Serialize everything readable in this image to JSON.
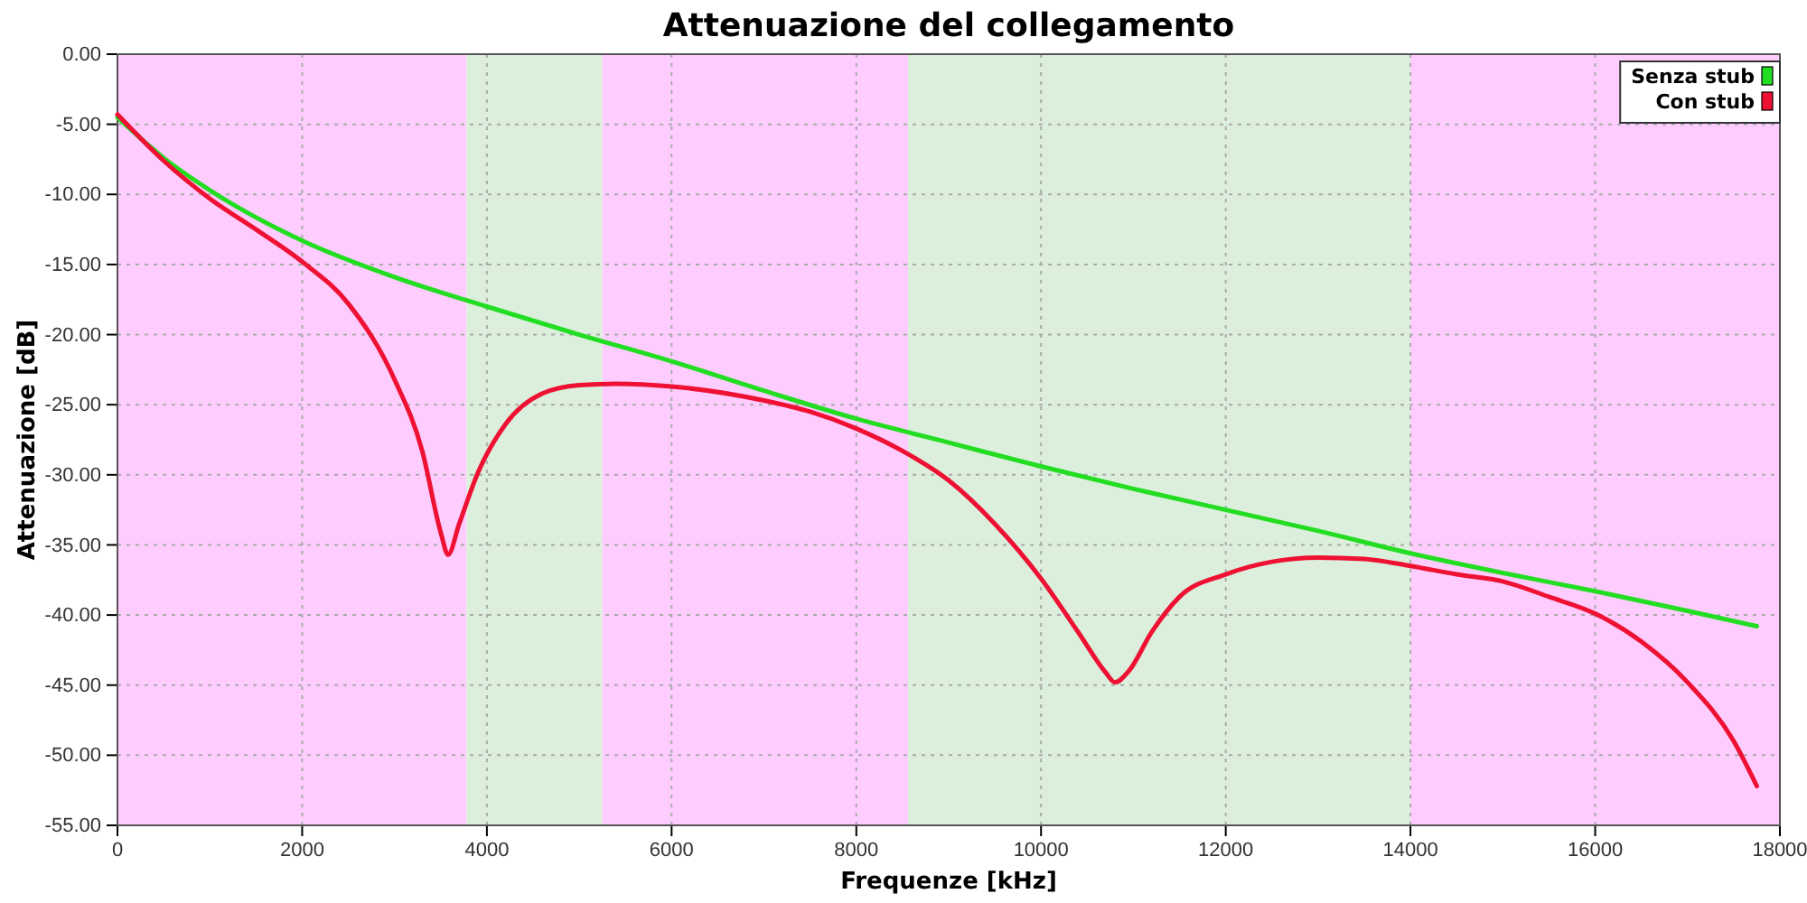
{
  "chart_data": {
    "type": "line",
    "title": "Attenuazione del collegamento",
    "xlabel": "Frequenze [kHz]",
    "ylabel": "Attenuazione [dB]",
    "xlim": [
      0,
      18000
    ],
    "xticks": [
      0,
      2000,
      4000,
      6000,
      8000,
      10000,
      12000,
      14000,
      16000,
      18000
    ],
    "ylim": [
      -55,
      0
    ],
    "yticks": [
      {
        "value": 0,
        "label": "0.00"
      },
      {
        "value": -5,
        "label": "-5.00"
      },
      {
        "value": -10,
        "label": "-10.00"
      },
      {
        "value": -15,
        "label": "-15.00"
      },
      {
        "value": -20,
        "label": "-20.00"
      },
      {
        "value": -25,
        "label": "-25.00"
      },
      {
        "value": -30,
        "label": "-30.00"
      },
      {
        "value": -35,
        "label": "-35.00"
      },
      {
        "value": -40,
        "label": "-40.00"
      },
      {
        "value": -45,
        "label": "-45.00"
      },
      {
        "value": -50,
        "label": "-50.00"
      },
      {
        "value": -55,
        "label": "-55.00"
      }
    ],
    "grid": true,
    "legend": "top right",
    "marker": "none",
    "line_style": "solid",
    "bands": [
      {
        "axis": "x",
        "from": 0,
        "to": 3780,
        "color": "#ffccff"
      },
      {
        "axis": "x",
        "from": 3780,
        "to": 5250,
        "color": "#dcefdc"
      },
      {
        "axis": "x",
        "from": 5250,
        "to": 8560,
        "color": "#ffccff"
      },
      {
        "axis": "x",
        "from": 8560,
        "to": 14000,
        "color": "#dcefdc"
      },
      {
        "axis": "x",
        "from": 14000,
        "to": 18000,
        "color": "#ffccff"
      }
    ],
    "series": [
      {
        "name": "Senza stub",
        "color": "#22dd22",
        "x": [
          0,
          500,
          1000,
          2000,
          3000,
          4000,
          5000,
          6000,
          7000,
          8000,
          9000,
          10000,
          11000,
          12000,
          13000,
          14000,
          15000,
          16000,
          17000,
          17750
        ],
        "values": [
          -4.5,
          -7.4,
          -9.7,
          -13.3,
          -15.9,
          -18,
          -20,
          -21.9,
          -24,
          -26,
          -27.7,
          -29.4,
          -31,
          -32.5,
          -34,
          -35.6,
          -37,
          -38.3,
          -39.7,
          -40.8
        ]
      },
      {
        "name": "Con stub",
        "color": "#ee1133",
        "x": [
          0,
          500,
          1000,
          1500,
          2000,
          2500,
          3000,
          3300,
          3500,
          3580,
          3700,
          3900,
          4200,
          4600,
          5000,
          5400,
          6000,
          7000,
          7500,
          8000,
          8500,
          9000,
          9500,
          10000,
          10400,
          10700,
          10800,
          10950,
          11200,
          11500,
          12000,
          12500,
          13000,
          13500,
          14000,
          14500,
          15000,
          15500,
          16000,
          16500,
          17000,
          17500,
          17750
        ],
        "values": [
          -4.3,
          -7.6,
          -10.3,
          -12.5,
          -14.8,
          -17.8,
          -23.2,
          -28.3,
          -34.1,
          -35.7,
          -33.5,
          -29.9,
          -26.4,
          -24.2,
          -23.6,
          -23.5,
          -23.7,
          -24.7,
          -25.5,
          -26.7,
          -28.3,
          -30.4,
          -33.5,
          -37.4,
          -41.2,
          -44.1,
          -44.8,
          -44,
          -41.2,
          -38.7,
          -37.1,
          -36.2,
          -35.9,
          -36,
          -36.5,
          -37.1,
          -37.6,
          -38.7,
          -39.9,
          -41.9,
          -44.8,
          -49,
          -52.2
        ]
      }
    ]
  }
}
